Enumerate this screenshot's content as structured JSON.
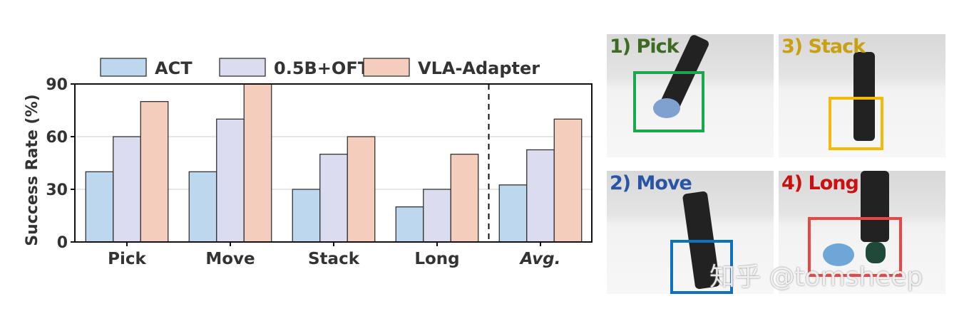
{
  "chart_data": {
    "type": "bar",
    "categories": [
      "Pick",
      "Move",
      "Stack",
      "Long",
      "Avg."
    ],
    "series": [
      {
        "name": "ACT",
        "values": [
          40,
          40,
          30,
          20,
          32.5
        ],
        "color": "#bdd7ee"
      },
      {
        "name": "0.5B+OFT",
        "values": [
          60,
          70,
          50,
          30,
          52.5
        ],
        "color": "#dcdcf0"
      },
      {
        "name": "VLA-Adapter",
        "values": [
          80,
          90,
          60,
          50,
          70
        ],
        "color": "#f5cdbd"
      }
    ],
    "ylabel": "Success Rate (%)",
    "xlabel": "",
    "ylim": [
      0,
      90
    ],
    "yticks": [
      0,
      30,
      60,
      90
    ],
    "grid": true,
    "legend": "top",
    "separator_before": "Avg."
  },
  "panels": [
    {
      "label": "1) Pick",
      "color": "#3d6b22",
      "box_color": "#1aa84f"
    },
    {
      "label": "3) Stack",
      "color": "#c9a010",
      "box_color": "#f5b90a"
    },
    {
      "label": "2) Move",
      "color": "#2a55a5",
      "box_color": "#1070c0"
    },
    {
      "label": "4) Long",
      "color": "#cc1010",
      "box_color": "#ee4444"
    }
  ],
  "watermark": "知乎 @tomsheep"
}
